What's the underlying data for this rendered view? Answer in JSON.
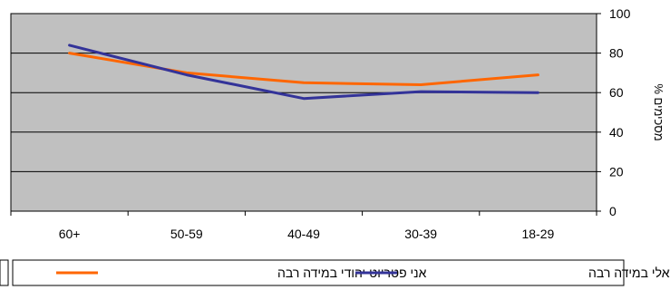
{
  "chart_data": {
    "type": "line",
    "categories": [
      "60+",
      "50-59",
      "40-49",
      "30-39",
      "18-29"
    ],
    "series": [
      {
        "name": "אני פטריוט יהודי במידה רבה",
        "color": "#ff6600",
        "values": [
          80,
          70,
          65,
          64,
          69
        ]
      },
      {
        "name": "אני פטריוט ישראלי במידה רבה",
        "color": "#333399",
        "values": [
          84,
          69,
          57,
          60.5,
          60
        ]
      }
    ],
    "ylabel": "% מסכימים",
    "ylim": [
      0,
      100
    ],
    "yticks": [
      0,
      20,
      40,
      60,
      80,
      100
    ],
    "y_axis_side": "right",
    "grid": true,
    "plot_background": "#c0c0c0",
    "legend_placement": "bottom"
  }
}
